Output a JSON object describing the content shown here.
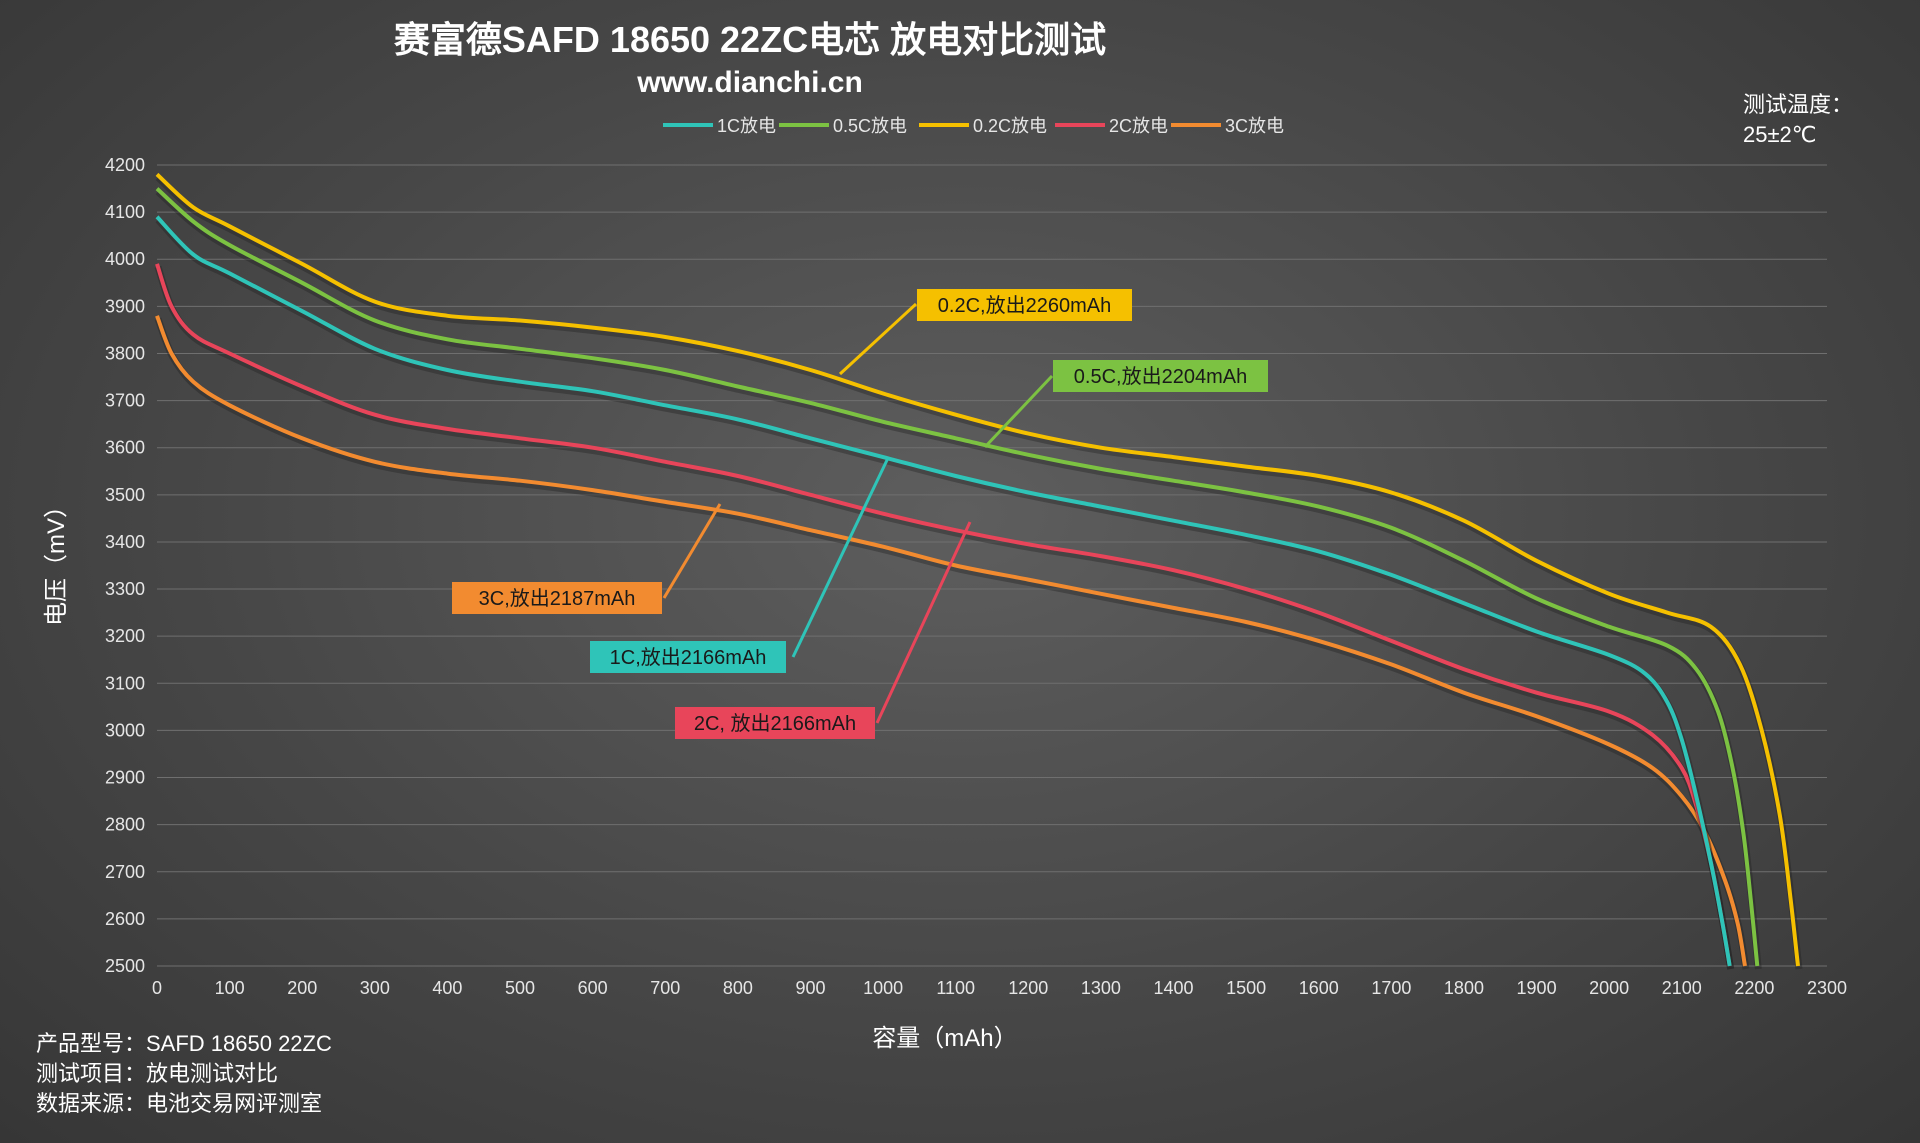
{
  "header": {
    "title": "赛富德SAFD 18650 22ZC电芯 放电对比测试",
    "subtitle": "www.dianchi.cn"
  },
  "temperature": {
    "label": "测试温度：",
    "value": "25±2℃"
  },
  "footer": {
    "model": "产品型号：SAFD 18650 22ZC",
    "item": "测试项目：放电测试对比",
    "source": "数据来源：电池交易网评测室"
  },
  "callouts": [
    {
      "text": "0.2C,放出2260mAh",
      "color": "#f5c000"
    },
    {
      "text": "0.5C,放出2204mAh",
      "color": "#7cc242"
    },
    {
      "text": "1C,放出2166mAh",
      "color": "#2fc4b8"
    },
    {
      "text": "2C, 放出2166mAh",
      "color": "#e8455a"
    },
    {
      "text": "3C,放出2187mAh",
      "color": "#f28b30"
    }
  ],
  "chart_data": {
    "type": "line",
    "title": "赛富德SAFD 18650 22ZC电芯 放电对比测试",
    "xlabel": "容量（mAh）",
    "ylabel": "电压（mV）",
    "xlim": [
      0,
      2300
    ],
    "ylim": [
      2500,
      4200
    ],
    "xticks": [
      0,
      100,
      200,
      300,
      400,
      500,
      600,
      700,
      800,
      900,
      1000,
      1100,
      1200,
      1300,
      1400,
      1500,
      1600,
      1700,
      1800,
      1900,
      2000,
      2100,
      2200,
      2300
    ],
    "yticks": [
      2500,
      2600,
      2700,
      2800,
      2900,
      3000,
      3100,
      3200,
      3300,
      3400,
      3500,
      3600,
      3700,
      3800,
      3900,
      4000,
      4100,
      4200
    ],
    "grid": true,
    "legend_position": "top",
    "series": [
      {
        "name": "1C放电",
        "color": "#2fc4b8",
        "x": [
          0,
          50,
          100,
          200,
          300,
          400,
          500,
          600,
          700,
          800,
          900,
          1000,
          1100,
          1200,
          1300,
          1400,
          1500,
          1600,
          1700,
          1800,
          1900,
          2000,
          2050,
          2080,
          2100,
          2120,
          2140,
          2155,
          2166
        ],
        "y": [
          4090,
          4010,
          3970,
          3890,
          3810,
          3765,
          3740,
          3720,
          3690,
          3660,
          3620,
          3580,
          3540,
          3505,
          3475,
          3445,
          3415,
          3380,
          3330,
          3270,
          3210,
          3160,
          3120,
          3060,
          2980,
          2860,
          2720,
          2600,
          2500
        ]
      },
      {
        "name": "0.5C放电",
        "color": "#7cc242",
        "x": [
          0,
          50,
          100,
          200,
          300,
          400,
          500,
          600,
          700,
          800,
          900,
          1000,
          1100,
          1200,
          1300,
          1400,
          1500,
          1600,
          1700,
          1800,
          1900,
          2000,
          2080,
          2120,
          2150,
          2170,
          2185,
          2195,
          2204
        ],
        "y": [
          4150,
          4080,
          4030,
          3950,
          3870,
          3830,
          3810,
          3790,
          3765,
          3730,
          3695,
          3655,
          3620,
          3585,
          3555,
          3530,
          3505,
          3475,
          3430,
          3360,
          3280,
          3220,
          3180,
          3130,
          3040,
          2920,
          2780,
          2640,
          2500
        ]
      },
      {
        "name": "0.2C放电",
        "color": "#f5c000",
        "x": [
          0,
          50,
          100,
          200,
          300,
          400,
          500,
          600,
          700,
          800,
          900,
          1000,
          1100,
          1200,
          1300,
          1400,
          1500,
          1600,
          1700,
          1800,
          1900,
          2000,
          2080,
          2140,
          2180,
          2210,
          2235,
          2250,
          2260
        ],
        "y": [
          4180,
          4110,
          4070,
          3990,
          3910,
          3880,
          3870,
          3855,
          3835,
          3805,
          3765,
          3715,
          3670,
          3630,
          3600,
          3580,
          3560,
          3540,
          3505,
          3445,
          3360,
          3290,
          3250,
          3220,
          3140,
          3000,
          2820,
          2640,
          2500
        ]
      },
      {
        "name": "2C放电",
        "color": "#e8455a",
        "x": [
          0,
          20,
          50,
          100,
          200,
          300,
          400,
          500,
          600,
          700,
          800,
          900,
          1000,
          1100,
          1200,
          1300,
          1400,
          1500,
          1600,
          1700,
          1800,
          1900,
          2000,
          2060,
          2100,
          2120,
          2140,
          2155,
          2166
        ],
        "y": [
          3990,
          3900,
          3840,
          3800,
          3730,
          3670,
          3640,
          3620,
          3600,
          3570,
          3540,
          3500,
          3460,
          3425,
          3395,
          3370,
          3340,
          3300,
          3250,
          3190,
          3130,
          3080,
          3040,
          2990,
          2920,
          2840,
          2720,
          2600,
          2500
        ]
      },
      {
        "name": "3C放电",
        "color": "#f28b30",
        "x": [
          0,
          20,
          50,
          100,
          200,
          300,
          400,
          500,
          600,
          700,
          800,
          900,
          1000,
          1100,
          1200,
          1300,
          1400,
          1500,
          1600,
          1700,
          1800,
          1900,
          2000,
          2060,
          2100,
          2130,
          2160,
          2177,
          2187
        ],
        "y": [
          3880,
          3800,
          3740,
          3690,
          3620,
          3570,
          3545,
          3530,
          3510,
          3485,
          3460,
          3425,
          3390,
          3350,
          3320,
          3290,
          3260,
          3230,
          3190,
          3140,
          3080,
          3030,
          2970,
          2920,
          2860,
          2790,
          2680,
          2590,
          2500
        ]
      }
    ]
  }
}
